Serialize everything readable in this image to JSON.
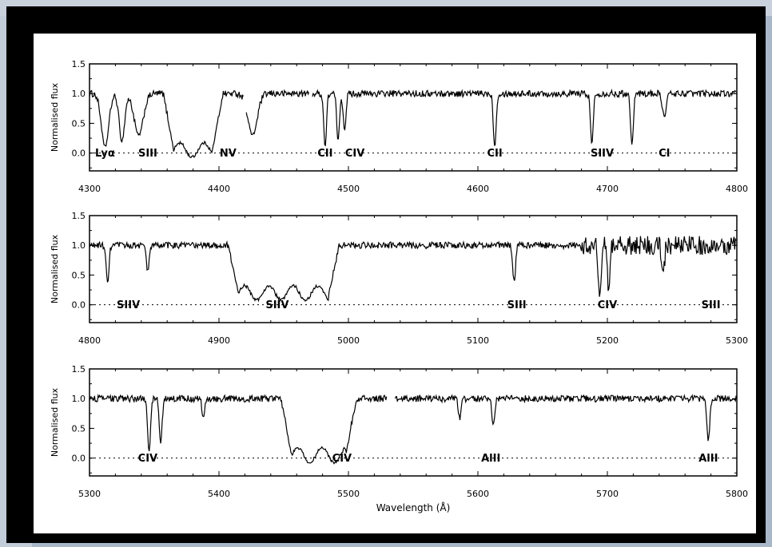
{
  "chart_data": [
    {
      "type": "line",
      "xlim": [
        4300,
        4800
      ],
      "ylim": [
        -0.3,
        1.5
      ],
      "ylabel": "Normalised flux",
      "xticks": [
        "4300",
        "4400",
        "4500",
        "4600",
        "4700",
        "4800"
      ],
      "yticks": [
        "0.0",
        "0.5",
        "1.0",
        "1.5"
      ],
      "reference_line": 0.0,
      "annotations": [
        {
          "text": "Lyα",
          "x": 4312
        },
        {
          "text": "SIII",
          "x": 4345
        },
        {
          "text": "NV",
          "x": 4407
        },
        {
          "text": "CII",
          "x": 4482
        },
        {
          "text": "CIV",
          "x": 4505
        },
        {
          "text": "CII",
          "x": 4613
        },
        {
          "text": "SIIV",
          "x": 4696
        },
        {
          "text": "CI",
          "x": 4744
        }
      ],
      "features": [
        {
          "x": 4312,
          "depth": 0.9,
          "width": 4
        },
        {
          "x": 4325,
          "depth": 0.8,
          "width": 3
        },
        {
          "x": 4338,
          "depth": 0.7,
          "width": 5
        },
        {
          "x": 4426,
          "depth": 0.7,
          "width": 5
        },
        {
          "x": 4482,
          "depth": 0.9,
          "width": 1.5
        },
        {
          "x": 4492,
          "depth": 0.8,
          "width": 1.5
        },
        {
          "x": 4497,
          "depth": 0.6,
          "width": 1.5
        },
        {
          "x": 4613,
          "depth": 0.9,
          "width": 1.5
        },
        {
          "x": 4688,
          "depth": 0.85,
          "width": 1.5
        },
        {
          "x": 4719,
          "depth": 0.85,
          "width": 1.5
        },
        {
          "x": 4744,
          "depth": 0.4,
          "width": 2
        }
      ],
      "trough": {
        "x": [
          4365,
          4395
        ],
        "level": 0.05
      },
      "gaps": [
        [
          4419,
          4421
        ],
        [
          4470,
          4472
        ]
      ]
    },
    {
      "type": "line",
      "xlim": [
        4800,
        5300
      ],
      "ylim": [
        -0.3,
        1.5
      ],
      "ylabel": "Normalised flux",
      "xticks": [
        "4800",
        "4900",
        "5000",
        "5100",
        "5200",
        "5300"
      ],
      "yticks": [
        "0.0",
        "0.5",
        "1.0",
        "1.5"
      ],
      "reference_line": 0.0,
      "annotations": [
        {
          "text": "SIIV",
          "x": 4830
        },
        {
          "text": "SIIV",
          "x": 4945
        },
        {
          "text": "SIII",
          "x": 5130
        },
        {
          "text": "CIV",
          "x": 5200
        },
        {
          "text": "SIII",
          "x": 5280
        }
      ],
      "features": [
        {
          "x": 4814,
          "depth": 0.65,
          "width": 1.5
        },
        {
          "x": 4845,
          "depth": 0.45,
          "width": 1.5
        },
        {
          "x": 5128,
          "depth": 0.6,
          "width": 1.5
        },
        {
          "x": 5194,
          "depth": 0.9,
          "width": 1.5
        },
        {
          "x": 5201,
          "depth": 0.75,
          "width": 1.5
        },
        {
          "x": 5243,
          "depth": 0.5,
          "width": 1.5
        }
      ],
      "trough": {
        "x": [
          4915,
          4985
        ],
        "level": 0.2
      },
      "noise_increase_from": 5180
    },
    {
      "type": "line",
      "xlim": [
        5300,
        5800
      ],
      "ylim": [
        -0.3,
        1.5
      ],
      "xlabel": "Wavelength (Å)",
      "ylabel": "Normalised flux",
      "xticks": [
        "5300",
        "5400",
        "5500",
        "5600",
        "5700",
        "5800"
      ],
      "yticks": [
        "0.0",
        "0.5",
        "1.0",
        "1.5"
      ],
      "reference_line": 0.0,
      "annotations": [
        {
          "text": "CIV",
          "x": 5345
        },
        {
          "text": "CIV",
          "x": 5495
        },
        {
          "text": "AlII",
          "x": 5610
        },
        {
          "text": "AlII",
          "x": 5778
        }
      ],
      "features": [
        {
          "x": 5346,
          "depth": 0.9,
          "width": 1.5
        },
        {
          "x": 5355,
          "depth": 0.75,
          "width": 1.5
        },
        {
          "x": 5388,
          "depth": 0.3,
          "width": 1.5
        },
        {
          "x": 5586,
          "depth": 0.35,
          "width": 1.5
        },
        {
          "x": 5612,
          "depth": 0.45,
          "width": 1.5
        },
        {
          "x": 5778,
          "depth": 0.7,
          "width": 1.5
        }
      ],
      "trough": {
        "x": [
          5456,
          5498
        ],
        "level": 0.05
      },
      "gaps": [
        [
          5530,
          5536
        ]
      ]
    }
  ]
}
